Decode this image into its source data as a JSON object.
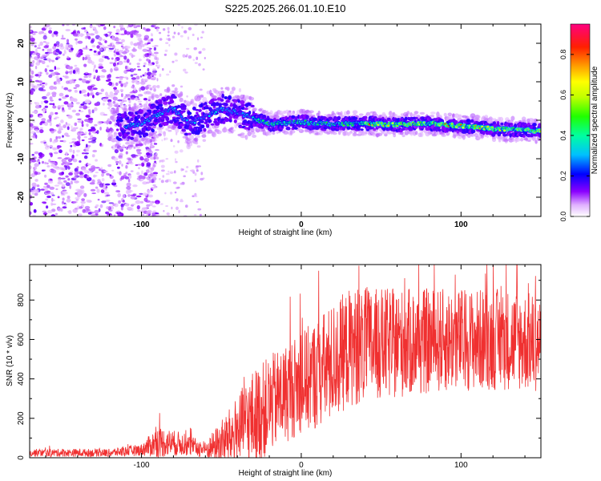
{
  "title": "S225.2025.266.01.10.E10",
  "chart_data": [
    {
      "type": "heatmap",
      "name": "spectrogram",
      "xlabel": "Height of straight line (km)",
      "ylabel": "Frequency (Hz)",
      "xlim": [
        -170,
        150
      ],
      "ylim": [
        -25,
        25
      ],
      "xticks": [
        -100,
        0,
        100
      ],
      "yticks": [
        -20,
        -10,
        0,
        10,
        20
      ],
      "colorbar": {
        "label": "Normalized spectral amplitude",
        "range": [
          0,
          0.95
        ],
        "ticks": [
          0.0,
          0.2,
          0.4,
          0.6,
          0.8
        ]
      },
      "ridge": {
        "description_points": [
          {
            "x": -110,
            "f": -1.5
          },
          {
            "x": -100,
            "f": -1
          },
          {
            "x": -90,
            "f": 1.5
          },
          {
            "x": -80,
            "f": 3
          },
          {
            "x": -70,
            "f": -1
          },
          {
            "x": -60,
            "f": 1
          },
          {
            "x": -50,
            "f": 3
          },
          {
            "x": -40,
            "f": 2
          },
          {
            "x": -30,
            "f": 0.5
          },
          {
            "x": -20,
            "f": -1
          },
          {
            "x": 0,
            "f": -0.5
          },
          {
            "x": 20,
            "f": -1
          },
          {
            "x": 40,
            "f": -0.8
          },
          {
            "x": 60,
            "f": -1.2
          },
          {
            "x": 80,
            "f": -0.8
          },
          {
            "x": 100,
            "f": -1.5
          },
          {
            "x": 120,
            "f": -2.2
          },
          {
            "x": 140,
            "f": -2.6
          },
          {
            "x": 150,
            "f": -2.8
          }
        ]
      }
    },
    {
      "type": "line",
      "name": "snr",
      "xlabel": "Height of straight line (km)",
      "ylabel": "SNR (10 * v/v)",
      "xlim": [
        -170,
        150
      ],
      "ylim": [
        0,
        980
      ],
      "xticks": [
        -100,
        0,
        100
      ],
      "yticks": [
        0,
        200,
        400,
        600,
        800
      ],
      "color": "#f03030",
      "envelope": [
        {
          "x": -170,
          "base": 25,
          "spread": 20
        },
        {
          "x": -120,
          "base": 25,
          "spread": 20
        },
        {
          "x": -100,
          "base": 40,
          "spread": 30
        },
        {
          "x": -90,
          "base": 80,
          "spread": 80
        },
        {
          "x": -75,
          "base": 70,
          "spread": 60
        },
        {
          "x": -60,
          "base": 40,
          "spread": 40
        },
        {
          "x": -45,
          "base": 100,
          "spread": 150
        },
        {
          "x": -30,
          "base": 200,
          "spread": 250
        },
        {
          "x": -15,
          "base": 300,
          "spread": 250
        },
        {
          "x": 0,
          "base": 380,
          "spread": 260
        },
        {
          "x": 15,
          "base": 450,
          "spread": 300
        },
        {
          "x": 30,
          "base": 560,
          "spread": 300
        },
        {
          "x": 60,
          "base": 580,
          "spread": 280
        },
        {
          "x": 100,
          "base": 600,
          "spread": 260
        },
        {
          "x": 130,
          "base": 600,
          "spread": 260
        },
        {
          "x": 150,
          "base": 580,
          "spread": 250
        }
      ]
    }
  ]
}
